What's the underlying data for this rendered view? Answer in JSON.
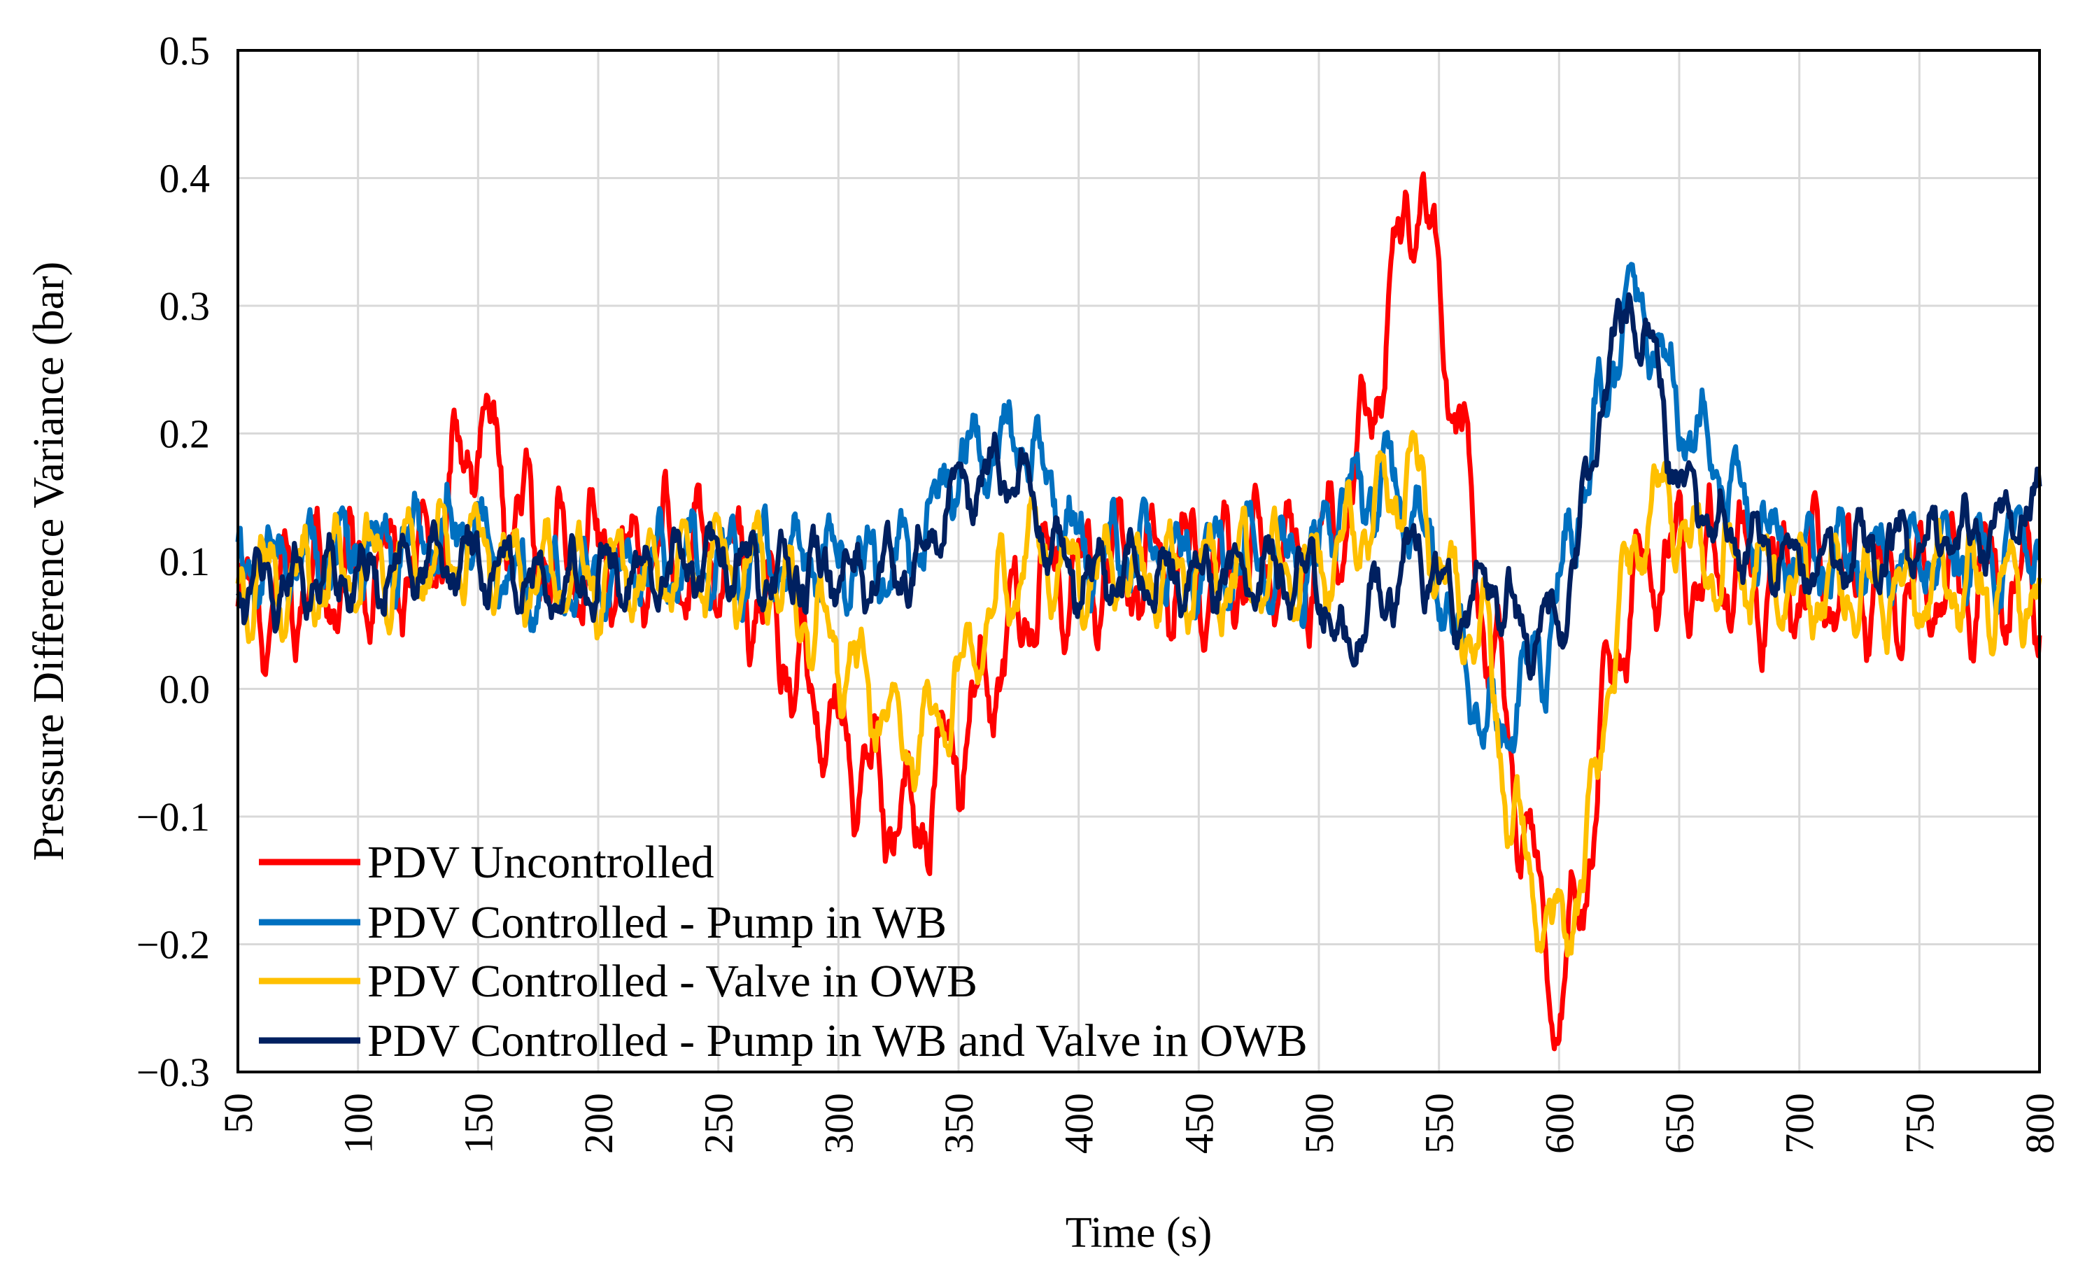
{
  "chart_data": {
    "type": "line",
    "title": "",
    "xlabel": "Time (s)",
    "ylabel": "Pressure Difference Variance (bar)",
    "xlim": [
      50,
      800
    ],
    "ylim": [
      -0.3,
      0.5
    ],
    "xticks": [
      50,
      100,
      150,
      200,
      250,
      300,
      350,
      400,
      450,
      500,
      550,
      600,
      650,
      700,
      750,
      800
    ],
    "yticks": [
      -0.3,
      -0.2,
      -0.1,
      0.0,
      0.1,
      0.2,
      0.3,
      0.4,
      0.5
    ],
    "ytick_labels": [
      "−0.3",
      "−0.2",
      "−0.1",
      "0.0",
      "0.1",
      "0.2",
      "0.3",
      "0.4",
      "0.5"
    ],
    "xtick_labels": [
      "50",
      "100",
      "150",
      "200",
      "250",
      "300",
      "350",
      "400",
      "450",
      "500",
      "550",
      "600",
      "650",
      "700",
      "750",
      "800"
    ],
    "grid": true,
    "legend_position": "bottom-left",
    "series": [
      {
        "name": "PDV Uncontrolled",
        "color": "#ff0000",
        "keypoints": [
          [
            50,
            0.07
          ],
          [
            130,
            0.1
          ],
          [
            150,
            0.21
          ],
          [
            165,
            0.14
          ],
          [
            180,
            0.1
          ],
          [
            250,
            0.1
          ],
          [
            260,
            0.09
          ],
          [
            300,
            -0.04
          ],
          [
            330,
            -0.11
          ],
          [
            350,
            -0.04
          ],
          [
            385,
            0.09
          ],
          [
            400,
            0.09
          ],
          [
            500,
            0.1
          ],
          [
            510,
            0.12
          ],
          [
            525,
            0.25
          ],
          [
            540,
            0.41
          ],
          [
            555,
            0.25
          ],
          [
            570,
            0.05
          ],
          [
            585,
            -0.1
          ],
          [
            600,
            -0.26
          ],
          [
            610,
            -0.15
          ],
          [
            625,
            0.05
          ],
          [
            640,
            0.1
          ],
          [
            700,
            0.08
          ],
          [
            800,
            0.08
          ]
        ],
        "wave_amp": 0.04,
        "noise_amp": 0.012
      },
      {
        "name": "PDV Controlled - Pump in WB",
        "color": "#0070c0",
        "keypoints": [
          [
            50,
            0.09
          ],
          [
            130,
            0.12
          ],
          [
            150,
            0.13
          ],
          [
            165,
            0.08
          ],
          [
            180,
            0.08
          ],
          [
            250,
            0.1
          ],
          [
            270,
            0.1
          ],
          [
            330,
            0.1
          ],
          [
            345,
            0.17
          ],
          [
            375,
            0.2
          ],
          [
            390,
            0.15
          ],
          [
            400,
            0.11
          ],
          [
            500,
            0.1
          ],
          [
            510,
            0.15
          ],
          [
            530,
            0.16
          ],
          [
            545,
            0.12
          ],
          [
            560,
            0.02
          ],
          [
            575,
            -0.04
          ],
          [
            585,
            0.0
          ],
          [
            595,
            0.03
          ],
          [
            600,
            0.08
          ],
          [
            615,
            0.2
          ],
          [
            630,
            0.31
          ],
          [
            640,
            0.27
          ],
          [
            650,
            0.22
          ],
          [
            660,
            0.19
          ],
          [
            680,
            0.13
          ],
          [
            700,
            0.1
          ],
          [
            800,
            0.11
          ]
        ],
        "wave_amp": 0.025,
        "noise_amp": 0.012
      },
      {
        "name": "PDV Controlled - Valve in OWB",
        "color": "#ffc000",
        "keypoints": [
          [
            50,
            0.08
          ],
          [
            130,
            0.1
          ],
          [
            150,
            0.11
          ],
          [
            180,
            0.08
          ],
          [
            250,
            0.1
          ],
          [
            270,
            0.09
          ],
          [
            300,
            0.03
          ],
          [
            330,
            -0.05
          ],
          [
            350,
            0.0
          ],
          [
            370,
            0.08
          ],
          [
            380,
            0.11
          ],
          [
            395,
            0.09
          ],
          [
            500,
            0.09
          ],
          [
            510,
            0.11
          ],
          [
            540,
            0.17
          ],
          [
            555,
            0.07
          ],
          [
            570,
            0.04
          ],
          [
            580,
            -0.1
          ],
          [
            600,
            -0.2
          ],
          [
            610,
            -0.15
          ],
          [
            620,
            0.0
          ],
          [
            635,
            0.14
          ],
          [
            645,
            0.15
          ],
          [
            660,
            0.1
          ],
          [
            700,
            0.08
          ],
          [
            800,
            0.08
          ]
        ],
        "wave_amp": 0.03,
        "noise_amp": 0.01
      },
      {
        "name": "PDV Controlled - Pump in WB and Valve in OWB",
        "color": "#002060",
        "keypoints": [
          [
            50,
            0.08
          ],
          [
            150,
            0.1
          ],
          [
            180,
            0.08
          ],
          [
            250,
            0.1
          ],
          [
            270,
            0.09
          ],
          [
            320,
            0.09
          ],
          [
            335,
            0.1
          ],
          [
            345,
            0.14
          ],
          [
            360,
            0.17
          ],
          [
            375,
            0.17
          ],
          [
            385,
            0.13
          ],
          [
            395,
            0.09
          ],
          [
            500,
            0.09
          ],
          [
            510,
            0.03
          ],
          [
            525,
            0.07
          ],
          [
            540,
            0.11
          ],
          [
            550,
            0.08
          ],
          [
            560,
            0.05
          ],
          [
            570,
            0.09
          ],
          [
            585,
            0.04
          ],
          [
            600,
            0.05
          ],
          [
            610,
            0.13
          ],
          [
            620,
            0.25
          ],
          [
            630,
            0.3
          ],
          [
            640,
            0.25
          ],
          [
            650,
            0.16
          ],
          [
            670,
            0.12
          ],
          [
            700,
            0.1
          ],
          [
            780,
            0.12
          ],
          [
            800,
            0.14
          ]
        ],
        "wave_amp": 0.02,
        "noise_amp": 0.01
      }
    ]
  }
}
